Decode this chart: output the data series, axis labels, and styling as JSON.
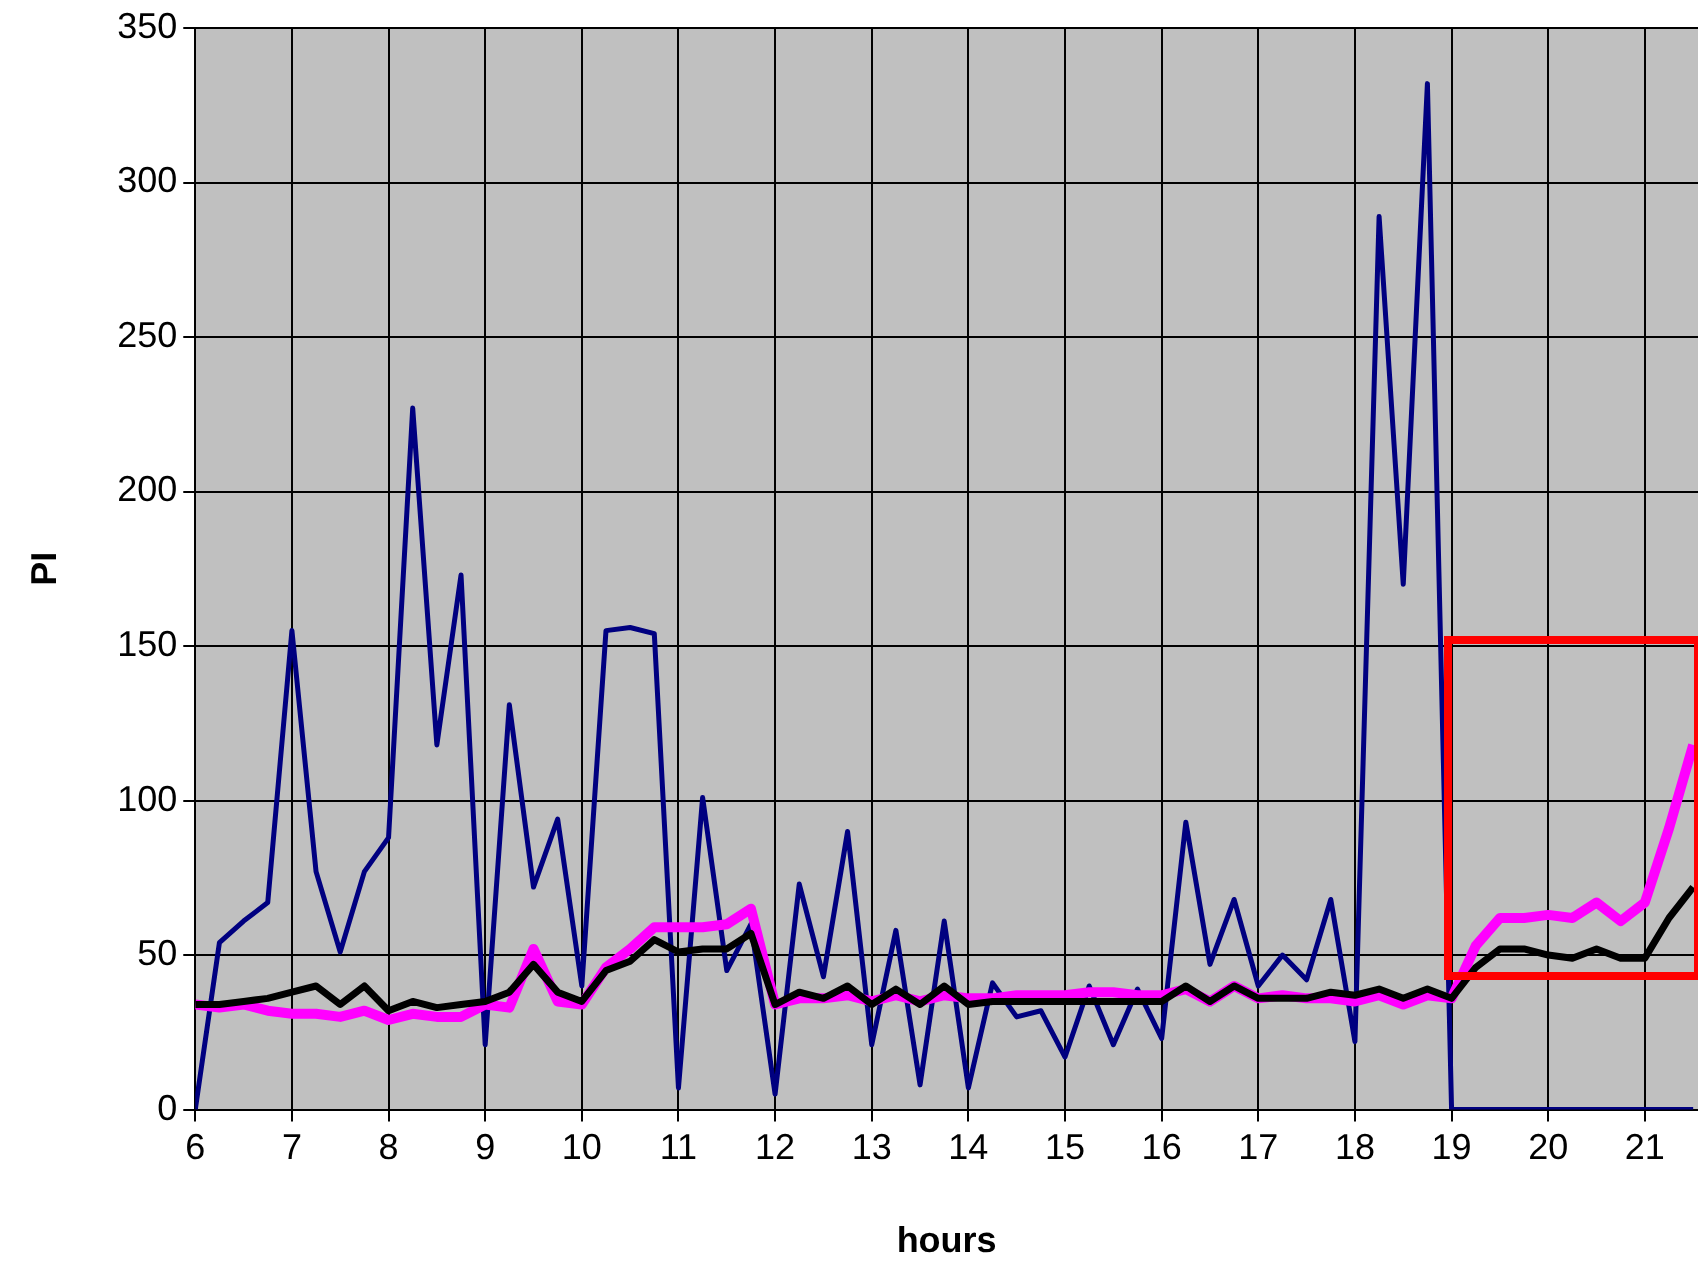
{
  "chart_data": {
    "type": "line",
    "xlabel": "hours",
    "ylabel": "PI",
    "x": [
      6,
      6.25,
      6.5,
      6.75,
      7,
      7.25,
      7.5,
      7.75,
      8,
      8.25,
      8.5,
      8.75,
      9,
      9.25,
      9.5,
      9.75,
      10,
      10.25,
      10.5,
      10.75,
      11,
      11.25,
      11.5,
      11.75,
      12,
      12.25,
      12.5,
      12.75,
      13,
      13.25,
      13.5,
      13.75,
      14,
      14.25,
      14.5,
      14.75,
      15,
      15.25,
      15.5,
      15.75,
      16,
      16.25,
      16.5,
      16.75,
      17,
      17.25,
      17.5,
      17.75,
      18,
      18.25,
      18.5,
      18.75,
      19,
      19.25,
      19.5,
      19.75,
      20,
      20.25,
      20.5,
      20.75,
      21,
      21.25,
      21.5
    ],
    "series": [
      {
        "color": "#000080",
        "values": [
          0,
          54,
          61,
          67,
          155,
          77,
          51,
          77,
          88,
          227,
          118,
          173,
          21,
          131,
          72,
          94,
          40,
          155,
          156,
          154,
          7,
          101,
          45,
          60,
          5,
          73,
          43,
          90,
          21,
          58,
          8,
          61,
          7,
          41,
          30,
          32,
          17,
          40,
          21,
          39,
          23,
          93,
          47,
          68,
          40,
          50,
          42,
          68,
          22,
          289,
          170,
          332,
          0,
          0,
          0,
          0,
          0,
          0,
          0,
          0,
          0,
          0,
          0
        ]
      },
      {
        "color": "#ff00ff",
        "values": [
          34,
          33,
          34,
          32,
          31,
          31,
          30,
          32,
          29,
          31,
          30,
          30,
          34,
          33,
          52,
          35,
          34,
          46,
          52,
          59,
          59,
          59,
          60,
          65,
          34,
          36,
          36,
          37,
          35,
          37,
          35,
          37,
          36,
          36,
          37,
          37,
          37,
          38,
          38,
          37,
          37,
          39,
          35,
          40,
          36,
          37,
          36,
          36,
          35,
          37,
          34,
          37,
          36,
          53,
          62,
          62,
          63,
          62,
          67,
          61,
          67,
          91,
          118
        ]
      },
      {
        "color": "#000000",
        "values": [
          34,
          34,
          35,
          36,
          38,
          40,
          34,
          40,
          32,
          35,
          33,
          34,
          35,
          38,
          47,
          38,
          35,
          45,
          48,
          55,
          51,
          52,
          52,
          57,
          34,
          38,
          36,
          40,
          34,
          39,
          34,
          40,
          34,
          35,
          35,
          35,
          35,
          35,
          35,
          35,
          35,
          40,
          35,
          40,
          36,
          36,
          36,
          38,
          37,
          39,
          36,
          39,
          36,
          46,
          52,
          52,
          50,
          49,
          52,
          49,
          49,
          62,
          72
        ]
      }
    ],
    "xlim": [
      6,
      21.55
    ],
    "xticks": [
      6,
      7,
      8,
      9,
      10,
      11,
      12,
      13,
      14,
      15,
      16,
      17,
      18,
      19,
      20,
      21
    ],
    "ylim": [
      0,
      350
    ],
    "yticks": [
      0,
      50,
      100,
      150,
      200,
      250,
      300,
      350
    ],
    "grid": true,
    "legend": false
  }
}
